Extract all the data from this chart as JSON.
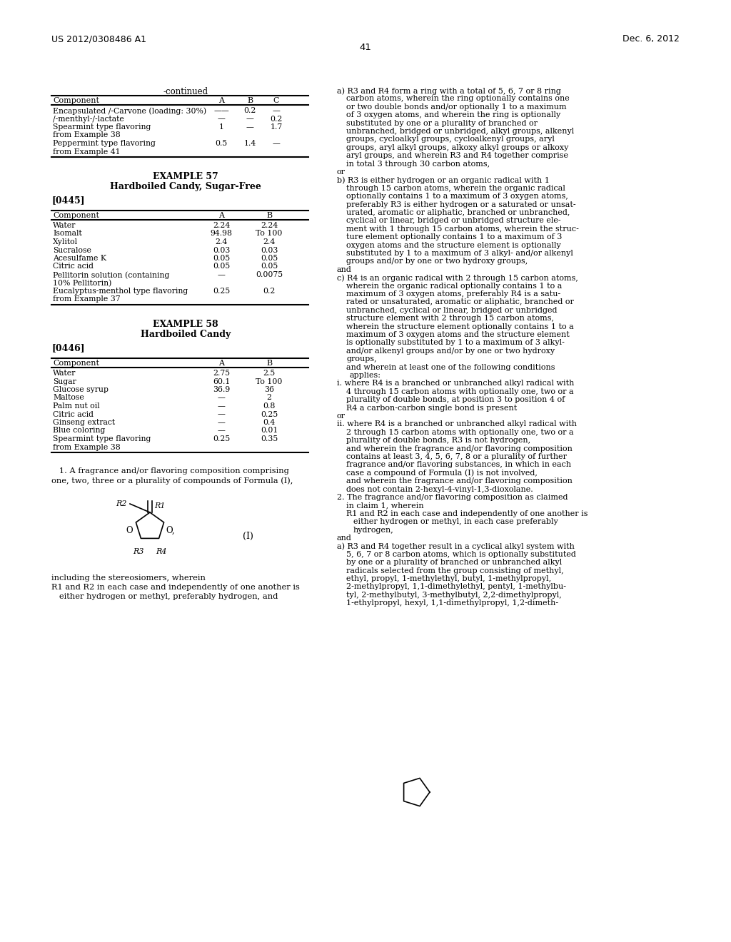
{
  "header_left": "US 2012/0308486 A1",
  "header_right": "Dec. 6, 2012",
  "page_number": "41",
  "bg_color": "#ffffff",
  "continued_label": "-continued",
  "table1_rows": [
    [
      "Encapsulated /-Carvone (loading: 30%)",
      "——",
      "0.2",
      "—"
    ],
    [
      "/-menthyl-/-lactate",
      "—",
      "—",
      "0.2"
    ],
    [
      "Spearmint type flavoring",
      "1",
      "—",
      "1.7"
    ],
    [
      "from Example 38",
      "",
      "",
      ""
    ],
    [
      "Peppermint type flavoring",
      "0.5",
      "1.4",
      "—"
    ],
    [
      "from Example 41",
      "",
      "",
      ""
    ]
  ],
  "example57_title": "EXAMPLE 57",
  "example57_subtitle": "Hardboiled Candy, Sugar-Free",
  "para_0445": "[0445]",
  "table2_rows": [
    [
      "Water",
      "2.24",
      "2.24"
    ],
    [
      "Isomalt",
      "94.98",
      "To 100"
    ],
    [
      "Xylitol",
      "2.4",
      "2.4"
    ],
    [
      "Sucralose",
      "0.03",
      "0.03"
    ],
    [
      "Acesulfame K",
      "0.05",
      "0.05"
    ],
    [
      "Citric acid",
      "0.05",
      "0.05"
    ],
    [
      "Pellitorin solution (containing",
      "—",
      "0.0075"
    ],
    [
      "10% Pellitorin)",
      "",
      ""
    ],
    [
      "Eucalyptus-menthol type flavoring",
      "0.25",
      "0.2"
    ],
    [
      "from Example 37",
      "",
      ""
    ]
  ],
  "example58_title": "EXAMPLE 58",
  "example58_subtitle": "Hardboiled Candy",
  "para_0446": "[0446]",
  "table3_rows": [
    [
      "Water",
      "2.75",
      "2.5"
    ],
    [
      "Sugar",
      "60.1",
      "To 100"
    ],
    [
      "Glucose syrup",
      "36.9",
      "36"
    ],
    [
      "Maltose",
      "—",
      "2"
    ],
    [
      "Palm nut oil",
      "—",
      "0.8"
    ],
    [
      "Citric acid",
      "—",
      "0.25"
    ],
    [
      "Ginseng extract",
      "—",
      "0.4"
    ],
    [
      "Blue coloring",
      "—",
      "0.01"
    ],
    [
      "Spearmint type flavoring",
      "0.25",
      "0.35"
    ],
    [
      "from Example 38",
      "",
      ""
    ]
  ],
  "right_col_lines": [
    [
      "indent",
      "a) R3 and R4 form a ring with a total of 5, 6, 7 or 8 ring"
    ],
    [
      "cont",
      "carbon atoms, wherein the ring optionally contains one"
    ],
    [
      "cont",
      "or two double bonds and/or optionally 1 to a maximum"
    ],
    [
      "cont",
      "of 3 oxygen atoms, and wherein the ring is optionally"
    ],
    [
      "cont",
      "substituted by one or a plurality of branched or"
    ],
    [
      "cont",
      "unbranched, bridged or unbridged, alkyl groups, alkenyl"
    ],
    [
      "cont",
      "groups, cycloalkyl groups, cycloalkenyl groups, aryl"
    ],
    [
      "cont",
      "groups, aryl alkyl groups, alkoxy alkyl groups or alkoxy"
    ],
    [
      "cont",
      "aryl groups, and wherein R3 and R4 together comprise"
    ],
    [
      "cont",
      "in total 3 through 30 carbon atoms,"
    ],
    [
      "left",
      "or"
    ],
    [
      "indent",
      "b) R3 is either hydrogen or an organic radical with 1"
    ],
    [
      "cont",
      "through 15 carbon atoms, wherein the organic radical"
    ],
    [
      "cont",
      "optionally contains 1 to a maximum of 3 oxygen atoms,"
    ],
    [
      "cont",
      "preferably R3 is either hydrogen or a saturated or unsat-"
    ],
    [
      "cont",
      "urated, aromatic or aliphatic, branched or unbranched,"
    ],
    [
      "cont",
      "cyclical or linear, bridged or unbridged structure ele-"
    ],
    [
      "cont",
      "ment with 1 through 15 carbon atoms, wherein the struc-"
    ],
    [
      "cont",
      "ture element optionally contains 1 to a maximum of 3"
    ],
    [
      "cont",
      "oxygen atoms and the structure element is optionally"
    ],
    [
      "cont",
      "substituted by 1 to a maximum of 3 alkyl- and/or alkenyl"
    ],
    [
      "cont",
      "groups and/or by one or two hydroxy groups,"
    ],
    [
      "left",
      "and"
    ],
    [
      "indent",
      "c) R4 is an organic radical with 2 through 15 carbon atoms,"
    ],
    [
      "cont",
      "wherein the organic radical optionally contains 1 to a"
    ],
    [
      "cont",
      "maximum of 3 oxygen atoms, preferably R4 is a satu-"
    ],
    [
      "cont",
      "rated or unsaturated, aromatic or aliphatic, branched or"
    ],
    [
      "cont",
      "unbranched, cyclical or linear, bridged or unbridged"
    ],
    [
      "cont",
      "structure element with 2 through 15 carbon atoms,"
    ],
    [
      "cont",
      "wherein the structure element optionally contains 1 to a"
    ],
    [
      "cont",
      "maximum of 3 oxygen atoms and the structure element"
    ],
    [
      "cont",
      "is optionally substituted by 1 to a maximum of 3 alkyl-"
    ],
    [
      "cont",
      "and/or alkenyl groups and/or by one or two hydroxy"
    ],
    [
      "cont",
      "groups,"
    ],
    [
      "cont",
      "and wherein at least one of the following conditions"
    ],
    [
      "cont2",
      "applies:"
    ],
    [
      "i",
      "i. where R4 is a branched or unbranched alkyl radical with"
    ],
    [
      "i2",
      "4 through 15 carbon atoms with optionally one, two or a"
    ],
    [
      "i2",
      "plurality of double bonds, at position 3 to position 4 of"
    ],
    [
      "i2",
      "R4 a carbon-carbon single bond is present"
    ],
    [
      "left",
      "or"
    ],
    [
      "i",
      "ii. where R4 is a branched or unbranched alkyl radical with"
    ],
    [
      "i2",
      "2 through 15 carbon atoms with optionally one, two or a"
    ],
    [
      "i2",
      "plurality of double bonds, R3 is not hydrogen,"
    ],
    [
      "cont",
      "and wherein the fragrance and/or flavoring composition"
    ],
    [
      "cont",
      "contains at least 3, 4, 5, 6, 7, 8 or a plurality of further"
    ],
    [
      "cont",
      "fragrance and/or flavoring substances, in which in each"
    ],
    [
      "cont",
      "case a compound of Formula (I) is not involved,"
    ],
    [
      "cont",
      "and wherein the fragrance and/or flavoring composition"
    ],
    [
      "cont",
      "does not contain 2-hexyl-4-vinyl-1,3-dioxolane."
    ],
    [
      "ind2",
      "2. The fragrance and/or flavoring composition as claimed"
    ],
    [
      "cont",
      "in claim 1, wherein"
    ],
    [
      "ind2b",
      "R1 and R2 in each case and independently of one another is"
    ],
    [
      "cont2b",
      "either hydrogen or methyl, in each case preferably"
    ],
    [
      "cont2b",
      "hydrogen,"
    ],
    [
      "left",
      "and"
    ],
    [
      "ind2",
      "a) R3 and R4 together result in a cyclical alkyl system with"
    ],
    [
      "cont",
      "5, 6, 7 or 8 carbon atoms, which is optionally substituted"
    ],
    [
      "cont",
      "by one or a plurality of branched or unbranched alkyl"
    ],
    [
      "cont",
      "radicals selected from the group consisting of methyl,"
    ],
    [
      "cont",
      "ethyl, propyl, 1-methylethyl, butyl, 1-methylpropyl,"
    ],
    [
      "cont",
      "2-methylpropyl, 1,1-dimethylethyl, pentyl, 1-methylbu-"
    ],
    [
      "cont",
      "tyl, 2-methylbutyl, 3-methylbutyl, 2,2-dimethylpropyl,"
    ],
    [
      "cont",
      "1-ethylpropyl, hexyl, 1,1-dimethylpropyl, 1,2-dimeth-"
    ]
  ]
}
